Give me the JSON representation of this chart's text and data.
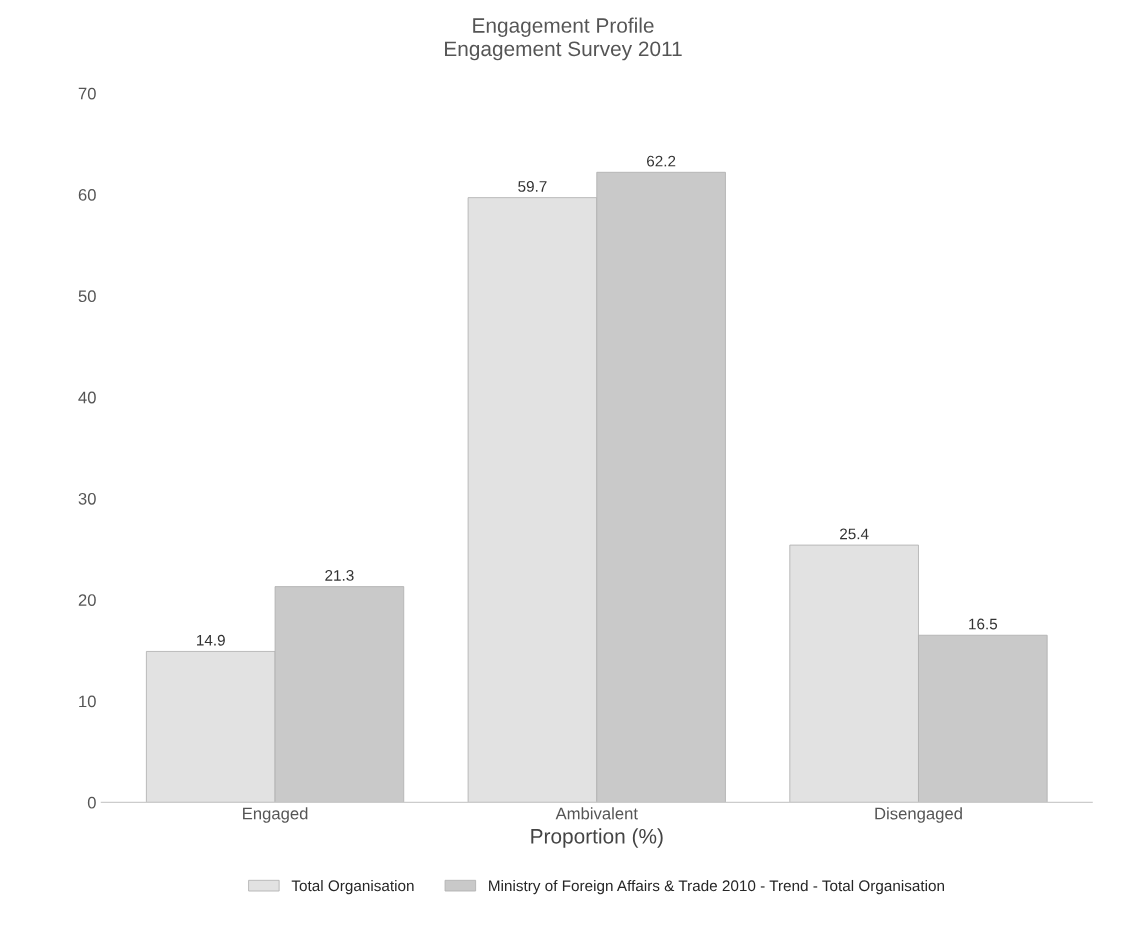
{
  "chart_data": {
    "type": "bar",
    "title": "Engagement Profile",
    "subtitle": "Engagement Survey 2011",
    "xlabel": "Proportion (%)",
    "categories": [
      "Engaged",
      "Ambivalent",
      "Disengaged"
    ],
    "series": [
      {
        "name": "Total Organisation",
        "color": "#e2e2e2",
        "values": [
          14.9,
          59.7,
          25.4
        ]
      },
      {
        "name": "Ministry of Foreign Affairs & Trade 2010 - Trend - Total Organisation",
        "color": "#c9c9c9",
        "values": [
          21.3,
          62.2,
          16.5
        ]
      }
    ],
    "ylim": [
      0,
      70
    ],
    "yticks": [
      0,
      10,
      20,
      30,
      40,
      50,
      60,
      70
    ],
    "data_labels": true,
    "grid": false,
    "legend": "bottom"
  }
}
